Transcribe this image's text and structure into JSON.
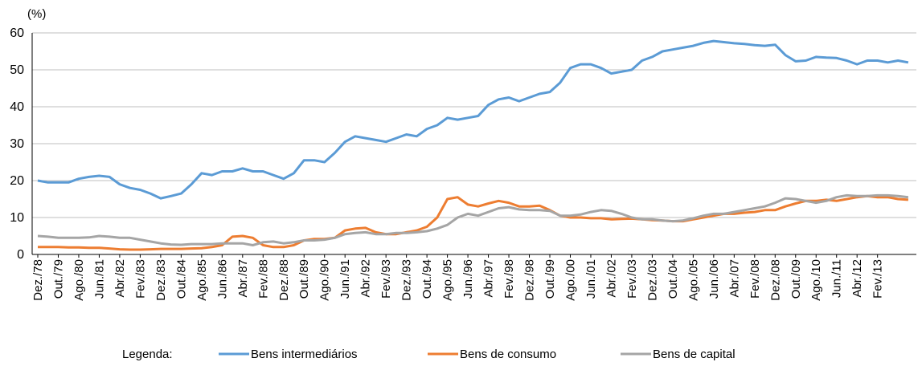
{
  "chart_data": {
    "type": "line",
    "y_label": "(%)",
    "legend_title": "Legenda:",
    "categories": [
      "Dez./78",
      null,
      "Out./79",
      null,
      "Ago./80",
      null,
      "Jun./81",
      null,
      "Abr./82",
      null,
      "Fev./83",
      null,
      "Dez./83",
      null,
      "Out./84",
      null,
      "Ago./85",
      null,
      "Jun./86",
      null,
      "Abr./87",
      null,
      "Fev./88",
      null,
      "Dez./88",
      null,
      "Out./89",
      null,
      "Ago./90",
      null,
      "Jun./91",
      null,
      "Abr./92",
      null,
      "Fev./93",
      null,
      "Dez./93",
      null,
      "Out./94",
      null,
      "Ago./95",
      null,
      "Jun./96",
      null,
      "Abr./97",
      null,
      "Fev./98",
      null,
      "Dez./98",
      null,
      "Out./99",
      null,
      "Ago./00",
      null,
      "Jun./01",
      null,
      "Abr./02",
      null,
      "Fev./03",
      null,
      "Dez./03",
      null,
      "Out./04",
      null,
      "Ago./05",
      null,
      "Jun./06",
      null,
      "Abr./07",
      null,
      "Fev./08",
      null,
      "Dez./08",
      null,
      "Out./09",
      null,
      "Ago./10",
      null,
      "Jun./11",
      null,
      "Abr./12",
      null,
      "Fev./13",
      null,
      null,
      null
    ],
    "series": [
      {
        "name": "Bens intermediários",
        "color": "#5b9bd5",
        "values": [
          20,
          19.5,
          19.5,
          19.5,
          20.5,
          21,
          21.3,
          21,
          19,
          18,
          17.5,
          16.5,
          15.2,
          15.8,
          16.5,
          19,
          22,
          21.5,
          22.5,
          22.5,
          23.3,
          22.5,
          22.5,
          21.5,
          20.5,
          22,
          25.5,
          25.5,
          25,
          27.5,
          30.5,
          32,
          31.5,
          31,
          30.5,
          31.5,
          32.5,
          32,
          34,
          35,
          37,
          36.5,
          37,
          37.5,
          40.5,
          42,
          42.5,
          41.5,
          42.5,
          43.5,
          44,
          46.5,
          50.5,
          51.5,
          51.5,
          50.5,
          49,
          49.5,
          50,
          52.5,
          53.5,
          55,
          55.5,
          56,
          56.5,
          57.3,
          57.8,
          57.5,
          57.2,
          57,
          56.7,
          56.5,
          56.8,
          54,
          52.3,
          52.5,
          53.5,
          53.3,
          53.2,
          52.5,
          51.5,
          52.5,
          52.5,
          52,
          52.5,
          52
        ]
      },
      {
        "name": "Bens de consumo",
        "color": "#ed7d31",
        "values": [
          2,
          2,
          2,
          1.9,
          1.9,
          1.8,
          1.8,
          1.6,
          1.4,
          1.3,
          1.3,
          1.4,
          1.5,
          1.5,
          1.5,
          1.6,
          1.7,
          2,
          2.5,
          4.8,
          5,
          4.5,
          2.5,
          2,
          2,
          2.5,
          3.8,
          4.2,
          4.2,
          4.5,
          6.5,
          7,
          7.2,
          6,
          5.5,
          5.5,
          6,
          6.5,
          7.5,
          10,
          15,
          15.5,
          13.5,
          13,
          13.8,
          14.5,
          14,
          13,
          13,
          13.2,
          12,
          10.5,
          10,
          10,
          9.8,
          9.8,
          9.5,
          9.6,
          9.7,
          9.5,
          9.3,
          9.2,
          9,
          9,
          9.5,
          10,
          10.5,
          11,
          11,
          11.3,
          11.5,
          12,
          12,
          13,
          13.8,
          14.5,
          14.5,
          14.8,
          14.5,
          15,
          15.5,
          15.8,
          15.5,
          15.5,
          15,
          14.8
        ]
      },
      {
        "name": "Bens de capital",
        "color": "#a5a5a5",
        "values": [
          5,
          4.8,
          4.5,
          4.5,
          4.5,
          4.6,
          5,
          4.8,
          4.5,
          4.5,
          4,
          3.5,
          3,
          2.7,
          2.6,
          2.8,
          2.8,
          2.8,
          3,
          3,
          3,
          2.5,
          3.3,
          3.5,
          3,
          3.3,
          3.8,
          3.8,
          4,
          4.5,
          5.5,
          5.8,
          6,
          5.5,
          5.5,
          5.8,
          5.8,
          6,
          6.3,
          7,
          8,
          10,
          11,
          10.5,
          11.5,
          12.5,
          12.8,
          12.2,
          12,
          12,
          11.8,
          10.5,
          10.5,
          10.8,
          11.5,
          12,
          11.8,
          11,
          10,
          9.5,
          9.5,
          9.2,
          9,
          9.2,
          9.8,
          10.5,
          11,
          11,
          11.5,
          12,
          12.5,
          13,
          14,
          15.2,
          15,
          14.5,
          14,
          14.5,
          15.5,
          16,
          15.8,
          15.8,
          16,
          16,
          15.8,
          15.5
        ]
      }
    ],
    "ylim": [
      0,
      60
    ],
    "yticks": [
      0,
      10,
      20,
      30,
      40,
      50,
      60
    ],
    "grid": true
  }
}
